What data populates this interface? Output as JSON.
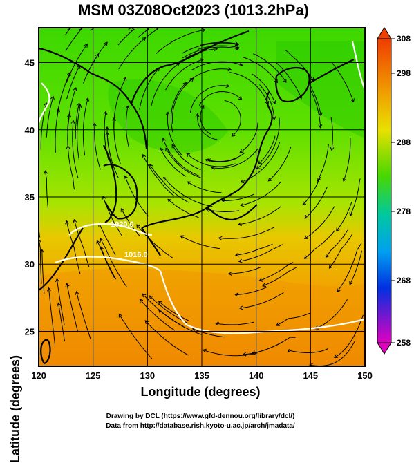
{
  "title": "MSM 03Z08Oct2023 (1013.2hPa)",
  "map": {
    "x_axis_label": "Longitude (degrees)",
    "y_axis_label": "Latitude  (degrees)",
    "lon_range": [
      120,
      150
    ],
    "lat_range": [
      22.4,
      47.6
    ],
    "lon_ticks": [
      "120",
      "125",
      "130",
      "135",
      "140",
      "145",
      "150"
    ],
    "lat_ticks": [
      "25",
      "30",
      "35",
      "40",
      "45"
    ],
    "contour_labels": [
      "1020.0",
      "1016.0"
    ],
    "field_colors": {
      "north": "#22d400",
      "mid": "#7ae600",
      "south": "#f0a000",
      "far_south": "#f07000"
    }
  },
  "colorbar": {
    "labels": [
      "308",
      "298",
      "288",
      "278",
      "268",
      "258"
    ],
    "colors": [
      "#f03000",
      "#f0c000",
      "#48d800",
      "#00c8c0",
      "#0040e0",
      "#d000c0"
    ]
  },
  "credits": {
    "line1": "Drawing by DCL (https://www.gfd-dennou.org/library/dcl/)",
    "line2": "Data from http://database.rish.kyoto-u.ac.jp/arch/jmadata/"
  }
}
